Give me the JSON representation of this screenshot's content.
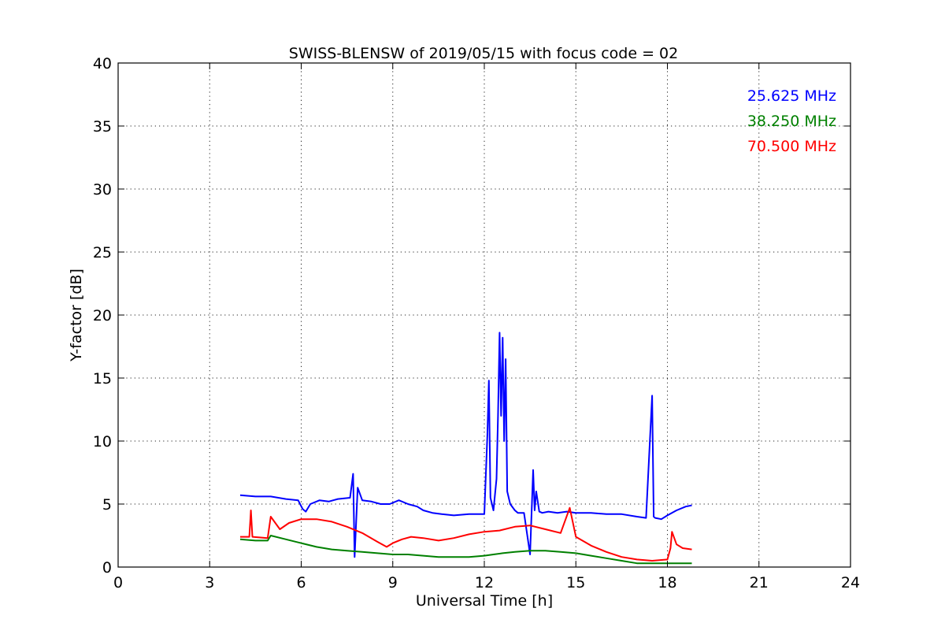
{
  "chart_data": {
    "type": "line",
    "title": "SWISS-BLENSW of 2019/05/15 with focus code = 02",
    "xlabel": "Universal Time [h]",
    "ylabel": "Y-factor [dB]",
    "xlim": [
      0,
      24
    ],
    "ylim": [
      0,
      40
    ],
    "xticks": [
      0,
      3,
      6,
      9,
      12,
      15,
      18,
      21,
      24
    ],
    "yticks": [
      0,
      5,
      10,
      15,
      20,
      25,
      30,
      35,
      40
    ],
    "x_tick_labels": [
      "0",
      "3",
      "6",
      "9",
      "12",
      "15",
      "18",
      "21",
      "24"
    ],
    "y_tick_labels": [
      "0",
      "5",
      "10",
      "15",
      "20",
      "25",
      "30",
      "35",
      "40"
    ],
    "grid": true,
    "legend_position": "top-right",
    "series": [
      {
        "name": "25.625 MHz",
        "color": "#0000ff",
        "x": [
          4.0,
          4.5,
          5.0,
          5.5,
          5.9,
          6.05,
          6.15,
          6.3,
          6.6,
          6.9,
          7.2,
          7.6,
          7.7,
          7.75,
          7.85,
          8.0,
          8.3,
          8.6,
          8.9,
          9.2,
          9.5,
          9.8,
          10.0,
          10.3,
          10.6,
          11.0,
          11.5,
          12.0,
          12.1,
          12.15,
          12.2,
          12.3,
          12.4,
          12.45,
          12.5,
          12.55,
          12.6,
          12.65,
          12.7,
          12.75,
          12.85,
          13.0,
          13.1,
          13.3,
          13.5,
          13.6,
          13.65,
          13.7,
          13.8,
          13.9,
          14.1,
          14.4,
          14.7,
          15.0,
          15.5,
          16.0,
          16.5,
          17.0,
          17.3,
          17.5,
          17.55,
          17.6,
          17.8,
          18.0,
          18.3,
          18.6,
          18.8
        ],
        "y": [
          5.7,
          5.6,
          5.6,
          5.4,
          5.3,
          4.6,
          4.4,
          5.0,
          5.3,
          5.2,
          5.4,
          5.5,
          7.4,
          0.8,
          6.3,
          5.3,
          5.2,
          5.0,
          5.0,
          5.3,
          5.0,
          4.8,
          4.5,
          4.3,
          4.2,
          4.1,
          4.2,
          4.2,
          10.5,
          14.8,
          5.5,
          4.5,
          7.0,
          12.0,
          18.6,
          12.0,
          18.2,
          10.0,
          16.5,
          6.0,
          5.0,
          4.5,
          4.3,
          4.3,
          1.0,
          7.7,
          4.5,
          6.0,
          4.4,
          4.3,
          4.4,
          4.3,
          4.4,
          4.3,
          4.3,
          4.2,
          4.2,
          4.0,
          3.9,
          13.6,
          4.0,
          3.9,
          3.8,
          4.1,
          4.5,
          4.8,
          4.9
        ]
      },
      {
        "name": "38.250 MHz",
        "color": "#008000",
        "x": [
          4.0,
          4.5,
          4.9,
          5.0,
          5.5,
          6.0,
          6.5,
          7.0,
          7.5,
          8.0,
          8.5,
          9.0,
          9.5,
          10.0,
          10.5,
          11.0,
          11.5,
          12.0,
          12.3,
          12.6,
          13.0,
          13.5,
          14.0,
          14.5,
          15.0,
          15.5,
          16.0,
          16.5,
          17.0,
          17.5,
          18.0,
          18.5,
          18.8
        ],
        "y": [
          2.2,
          2.1,
          2.1,
          2.5,
          2.2,
          1.9,
          1.6,
          1.4,
          1.3,
          1.2,
          1.1,
          1.0,
          1.0,
          0.9,
          0.8,
          0.8,
          0.8,
          0.9,
          1.0,
          1.1,
          1.2,
          1.3,
          1.3,
          1.2,
          1.1,
          0.9,
          0.7,
          0.5,
          0.3,
          0.3,
          0.3,
          0.3,
          0.3
        ]
      },
      {
        "name": "70.500 MHz",
        "color": "#ff0000",
        "x": [
          4.0,
          4.3,
          4.35,
          4.4,
          4.9,
          5.0,
          5.3,
          5.6,
          6.0,
          6.5,
          7.0,
          7.5,
          8.0,
          8.5,
          8.8,
          9.0,
          9.3,
          9.6,
          10.0,
          10.5,
          11.0,
          11.5,
          12.0,
          12.5,
          13.0,
          13.5,
          14.0,
          14.5,
          14.8,
          15.0,
          15.5,
          16.0,
          16.5,
          17.0,
          17.5,
          18.0,
          18.1,
          18.15,
          18.3,
          18.5,
          18.8
        ],
        "y": [
          2.4,
          2.4,
          4.5,
          2.4,
          2.3,
          4.0,
          3.0,
          3.5,
          3.8,
          3.8,
          3.6,
          3.2,
          2.7,
          2.0,
          1.6,
          1.9,
          2.2,
          2.4,
          2.3,
          2.1,
          2.3,
          2.6,
          2.8,
          2.9,
          3.2,
          3.3,
          3.0,
          2.7,
          4.7,
          2.4,
          1.7,
          1.2,
          0.8,
          0.6,
          0.5,
          0.6,
          1.5,
          2.8,
          1.8,
          1.5,
          1.4
        ]
      }
    ]
  }
}
